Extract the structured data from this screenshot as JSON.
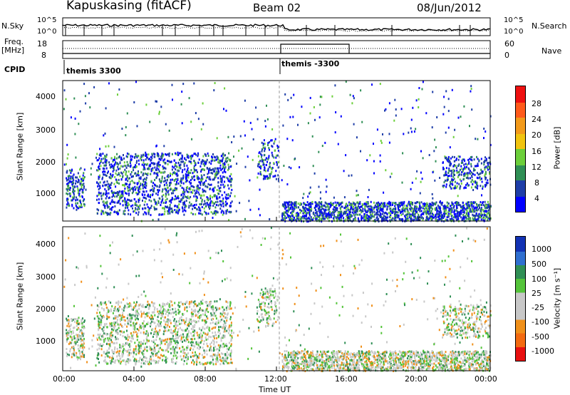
{
  "header": {
    "station": "Kapuskasing (fitACF)",
    "beam": "Beam 02",
    "date": "08/Jun/2012"
  },
  "aux": {
    "nsky_label": "N.Sky",
    "noise_ticks": [
      "10^5",
      "10^0"
    ],
    "noise_right_ticks": [
      "10^5",
      "10^0"
    ],
    "nsearch_label": "N.Search",
    "freq_label": "Freq.",
    "mhz_label": "[MHz]",
    "freq_ticks": [
      "18",
      "8"
    ],
    "nave_ticks": [
      "60",
      "0"
    ],
    "nave_label": "Nave",
    "cpid_label": "CPID",
    "cpid_1": "themis 3300",
    "cpid_2": "themis -3300"
  },
  "panels": {
    "ylabel": "Slant Range [km]",
    "power_label": "Power [dB]",
    "velocity_label": "Velocity [m s⁻¹]",
    "xlabel": "Time UT"
  },
  "chart_data": [
    {
      "type": "heatmap",
      "title": "Power",
      "x_ticks": [
        "00:00",
        "04:00",
        "08:00",
        "12:00",
        "16:00",
        "20:00",
        "00:00"
      ],
      "y_ticks": [
        1000,
        2000,
        3000,
        4000
      ],
      "ylim": [
        180,
        4500
      ],
      "xlim_hours": [
        0,
        24
      ],
      "colorbar": {
        "label": "Power [dB]",
        "ticks": [
          4,
          8,
          12,
          16,
          20,
          24,
          28
        ],
        "colors": [
          "#0000ff",
          "#1e3ea8",
          "#2f8f55",
          "#6ccf3a",
          "#f1c40f",
          "#f39a1a",
          "#ff5a1a",
          "#ee1010"
        ]
      }
    },
    {
      "type": "heatmap",
      "title": "Velocity",
      "x_ticks": [
        "00:00",
        "04:00",
        "08:00",
        "12:00",
        "16:00",
        "20:00",
        "00:00"
      ],
      "y_ticks": [
        1000,
        2000,
        3000,
        4000
      ],
      "ylim": [
        180,
        4500
      ],
      "xlim_hours": [
        0,
        24
      ],
      "colorbar": {
        "label": "Velocity [m s⁻¹]",
        "ticks": [
          "1000",
          "500",
          "100",
          "25",
          "-25",
          "-100",
          "-500",
          "-1000"
        ],
        "colors": [
          "#1232b4",
          "#2f6fd0",
          "#2f8f55",
          "#54c43a",
          "#c8c8c8",
          "#c8c8c8",
          "#f0901a",
          "#f36a10",
          "#e81010"
        ]
      }
    }
  ]
}
